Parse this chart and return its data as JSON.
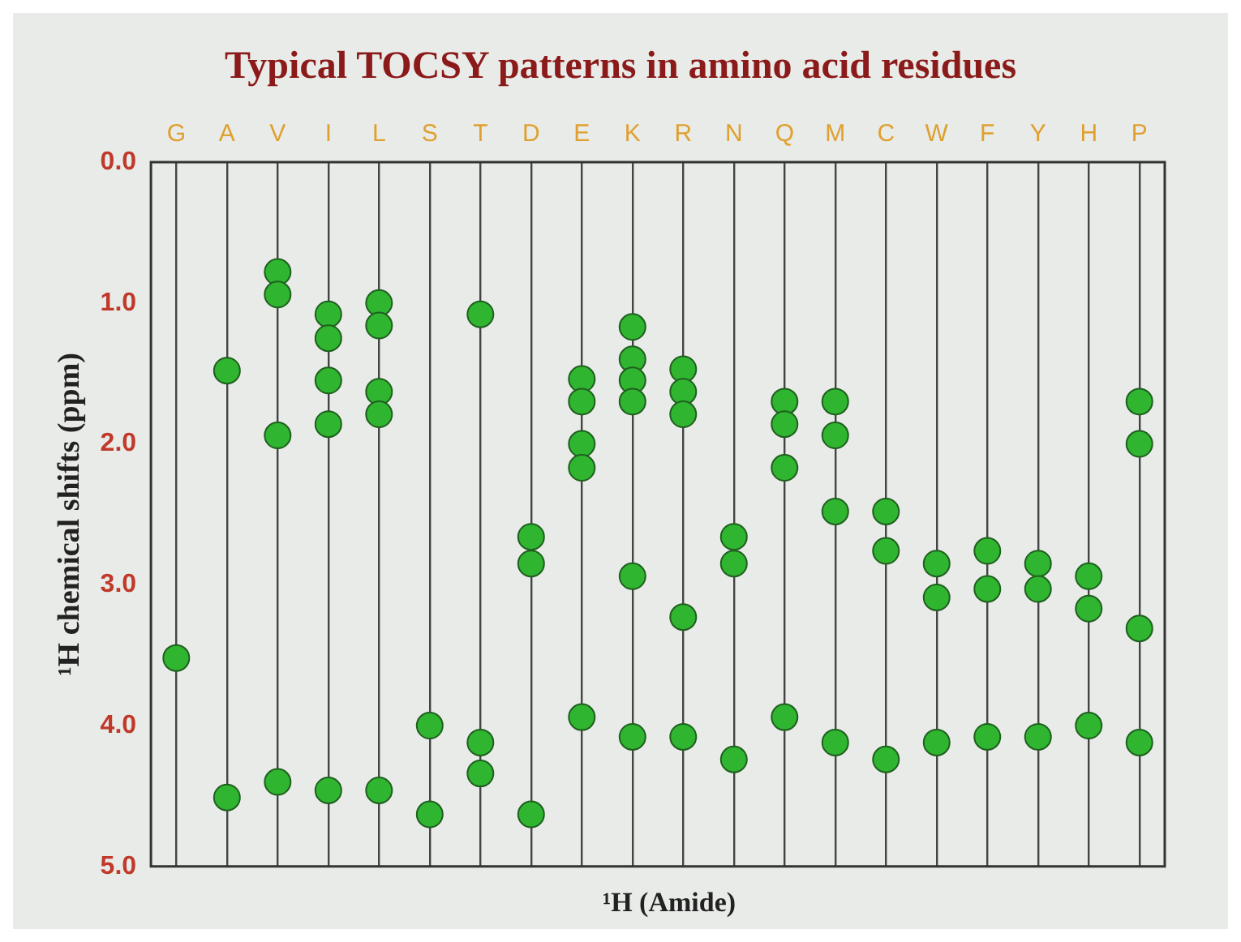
{
  "chart_data": {
    "type": "scatter",
    "title": "Typical TOCSY patterns in amino acid residues",
    "xlabel": "¹H (Amide)",
    "ylabel": "¹H chemical shifts (ppm)",
    "categories": [
      "G",
      "A",
      "V",
      "I",
      "L",
      "S",
      "T",
      "D",
      "E",
      "K",
      "R",
      "N",
      "Q",
      "M",
      "C",
      "W",
      "F",
      "Y",
      "H",
      "P"
    ],
    "series": [
      {
        "color": "#2fb52f",
        "x": [
          "G",
          "A",
          "A",
          "V",
          "V",
          "V",
          "V",
          "I",
          "I",
          "I",
          "I",
          "I",
          "L",
          "L",
          "L",
          "L",
          "L",
          "S",
          "S",
          "T",
          "T",
          "T",
          "D",
          "D",
          "D",
          "E",
          "E",
          "E",
          "E",
          "E",
          "K",
          "K",
          "K",
          "K",
          "K",
          "K",
          "R",
          "R",
          "R",
          "R",
          "R",
          "N",
          "N",
          "N",
          "Q",
          "Q",
          "Q",
          "Q",
          "M",
          "M",
          "M",
          "M",
          "C",
          "C",
          "C",
          "W",
          "W",
          "W",
          "F",
          "F",
          "F",
          "Y",
          "Y",
          "Y",
          "H",
          "H",
          "H",
          "P",
          "P",
          "P",
          "P"
        ],
        "values": [
          3.52,
          1.48,
          4.51,
          0.78,
          0.94,
          1.94,
          4.4,
          1.08,
          1.25,
          1.55,
          1.86,
          4.46,
          1.0,
          1.16,
          1.63,
          1.79,
          4.46,
          4.0,
          4.63,
          1.08,
          4.12,
          4.34,
          2.66,
          2.85,
          4.63,
          1.54,
          1.7,
          2.0,
          2.17,
          3.94,
          1.17,
          1.4,
          1.55,
          1.7,
          2.94,
          4.08,
          1.47,
          1.63,
          1.79,
          3.23,
          4.08,
          2.66,
          2.85,
          4.24,
          1.7,
          1.86,
          2.17,
          3.94,
          1.7,
          1.94,
          2.48,
          4.12,
          2.48,
          2.76,
          4.24,
          2.85,
          3.09,
          4.12,
          2.76,
          3.03,
          4.08,
          2.85,
          3.03,
          4.08,
          2.94,
          3.17,
          4.0,
          1.7,
          2.0,
          3.31,
          4.12
        ]
      }
    ],
    "ylim": [
      5,
      0
    ],
    "yticks": [
      {
        "value": 0,
        "label": "0.0"
      },
      {
        "value": 1,
        "label": "1.0"
      },
      {
        "value": 2,
        "label": "2.0"
      },
      {
        "value": 3,
        "label": "3.0"
      },
      {
        "value": 4,
        "label": "4.0"
      },
      {
        "value": 5,
        "label": "5.0"
      }
    ],
    "grid": "x",
    "marker": "circle"
  }
}
